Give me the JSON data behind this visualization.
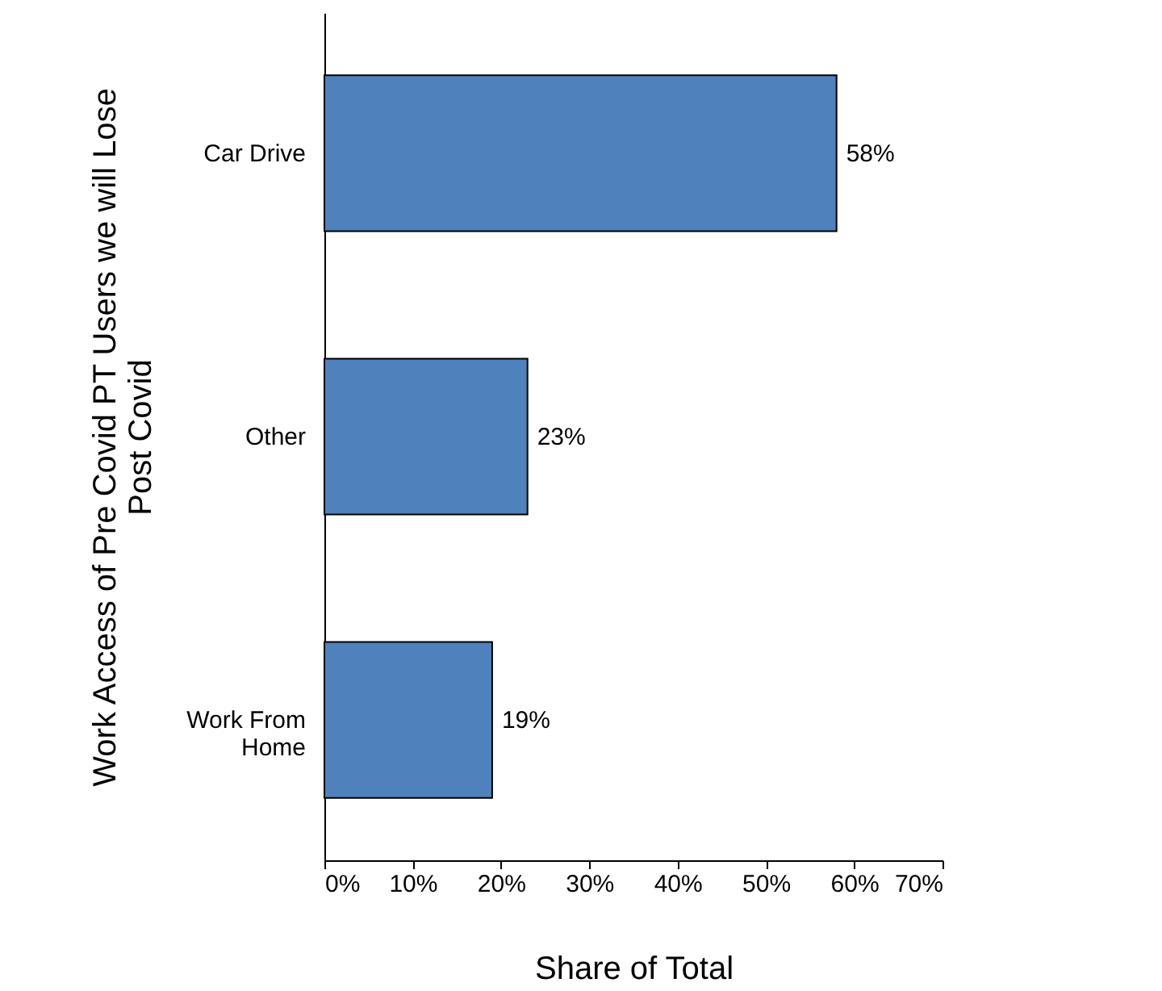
{
  "chart_data": {
    "type": "bar",
    "orientation": "horizontal",
    "xlabel": "Share of Total",
    "ylabel": "Work Access of Pre Covid PT Users we will Lose Post Covid",
    "categories": [
      "Car Drive",
      "Other",
      "Work From Home"
    ],
    "values": [
      58,
      23,
      19
    ],
    "value_labels": [
      "58%",
      "23%",
      "19%"
    ],
    "color": "#4f81bd",
    "xlim": [
      0,
      70
    ],
    "xticks": [
      {
        "value": 0,
        "label": "0%"
      },
      {
        "value": 10,
        "label": "10%"
      },
      {
        "value": 20,
        "label": "20%"
      },
      {
        "value": 30,
        "label": "30%"
      },
      {
        "value": 40,
        "label": "40%"
      },
      {
        "value": 50,
        "label": "50%"
      },
      {
        "value": 60,
        "label": "60%"
      },
      {
        "value": 70,
        "label": "70%"
      }
    ],
    "grid": false
  }
}
